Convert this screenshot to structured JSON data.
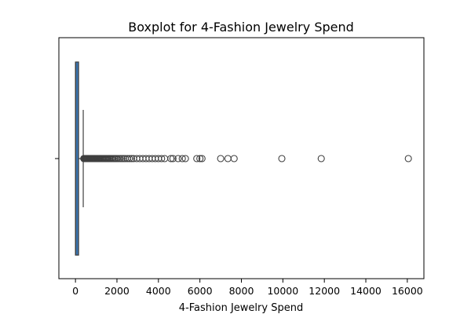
{
  "chart_data": {
    "type": "boxplot",
    "orientation": "horizontal",
    "title": "Boxplot for 4-Fashion Jewelry Spend",
    "xlabel": "4-Fashion Jewelry Spend",
    "ylabel": "",
    "xlim": [
      -800,
      16800
    ],
    "x_ticks": [
      0,
      2000,
      4000,
      6000,
      8000,
      10000,
      12000,
      14000,
      16000
    ],
    "grid": false,
    "box_color": "#3b75af",
    "box": {
      "q1": 0,
      "median": 10,
      "q3": 150,
      "whisker_low": 0,
      "whisker_high": 375
    },
    "outliers": [
      400,
      430,
      460,
      490,
      520,
      550,
      580,
      610,
      640,
      670,
      700,
      730,
      760,
      790,
      820,
      850,
      880,
      910,
      940,
      970,
      1000,
      1040,
      1080,
      1120,
      1160,
      1200,
      1250,
      1300,
      1350,
      1400,
      1450,
      1500,
      1550,
      1600,
      1650,
      1700,
      1760,
      1820,
      1880,
      1940,
      2000,
      2080,
      2160,
      2240,
      2320,
      2400,
      2500,
      2600,
      2700,
      2800,
      2950,
      3100,
      3250,
      3400,
      3550,
      3700,
      3850,
      4000,
      4150,
      4300,
      4600,
      4700,
      4950,
      5150,
      5300,
      5850,
      6000,
      6100,
      7000,
      7350,
      7650,
      9950,
      11850,
      16050
    ]
  }
}
